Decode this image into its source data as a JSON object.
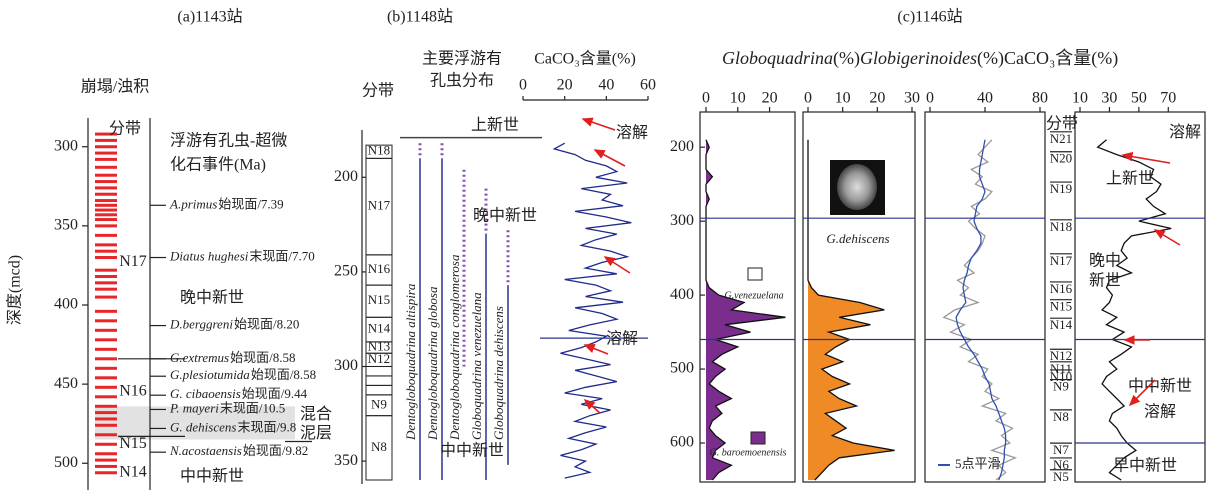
{
  "panel_a": {
    "title": "(a)1143站",
    "column_title": "崩塌/浊积",
    "y_label": "深度(mcd)",
    "ylim": [
      285,
      515
    ],
    "yticks": [
      300,
      350,
      400,
      450,
      500
    ],
    "turbidites": [
      292,
      296,
      300,
      304,
      308,
      313,
      318,
      322,
      326,
      330,
      334,
      337,
      340,
      343,
      346,
      350,
      356,
      362,
      366,
      370,
      378,
      382,
      386,
      390,
      395,
      404,
      410,
      416,
      422,
      428,
      434,
      440,
      446,
      452,
      458,
      464,
      468,
      472,
      476,
      482,
      488,
      494,
      498,
      502,
      506
    ],
    "zone_header": "分带",
    "zones": [
      {
        "label": "N17",
        "depth": 373
      },
      {
        "label": "N16",
        "depth": 455
      },
      {
        "label": "N15",
        "depth": 488
      },
      {
        "label": "N14",
        "depth": 506
      }
    ],
    "zone_boundaries": [
      434,
      483
    ],
    "events_header": [
      "浮游有孔虫-超微",
      "化石事件(Ma)"
    ],
    "events": [
      {
        "species": "A.primus",
        "text": "始现面/7.39",
        "depth": 337
      },
      {
        "species": "Diatus hughesi",
        "text": "末现面/7.70",
        "depth": 370
      },
      {
        "species": "D.berggreni",
        "text": "始现面/8.20",
        "depth": 413
      },
      {
        "species": "G.extremus",
        "text": "始现面/8.58",
        "depth": 434
      },
      {
        "species": "G.plesiotumida",
        "text": "始现面/8.58",
        "depth": 445
      },
      {
        "species": "G. cibaoensis",
        "text": "始现面/9.44",
        "depth": 457
      },
      {
        "species": "P. mayeri",
        "text": "末现面/10.5",
        "depth": 466
      },
      {
        "species": "G. dehiscens",
        "text": "末现面/9.8",
        "depth": 478
      },
      {
        "species": "N.acostaensis",
        "text": "始现面/9.82",
        "depth": 493
      }
    ],
    "mixed_layer": {
      "label": [
        "混合",
        "泥层"
      ],
      "top": 464,
      "bottom": 485
    },
    "epochs": [
      {
        "label": "晚中新世",
        "depth": 396
      },
      {
        "label": "中中新世",
        "depth": 509
      }
    ]
  },
  "panel_b": {
    "title": "(b)1148站",
    "zone_header": "分带",
    "distribution_title": [
      "主要浮游有",
      "孔虫分布"
    ],
    "ylim": [
      175,
      360
    ],
    "yticks": [
      200,
      250,
      300,
      350
    ],
    "zones": [
      {
        "label": "N18",
        "top": 183,
        "bottom": 190
      },
      {
        "label": "N17",
        "top": 190,
        "bottom": 241
      },
      {
        "label": "N16",
        "top": 241,
        "bottom": 257
      },
      {
        "label": "N15",
        "top": 257,
        "bottom": 274
      },
      {
        "label": "N14",
        "top": 274,
        "bottom": 287
      },
      {
        "label": "N13",
        "top": 287,
        "bottom": 293
      },
      {
        "label": "N12",
        "top": 293,
        "bottom": 300
      },
      {
        "label": null,
        "top": 300,
        "bottom": 305
      },
      {
        "label": null,
        "top": 305,
        "bottom": 310
      },
      {
        "label": null,
        "top": 310,
        "bottom": 315
      },
      {
        "label": "N9",
        "top": 315,
        "bottom": 326
      },
      {
        "label": "N8",
        "top": 326,
        "bottom": 360
      }
    ],
    "species": [
      {
        "name": "Dentogloboquadrina altispira",
        "dotted": [
          182,
          190
        ],
        "solid": [
          190,
          360
        ]
      },
      {
        "name": "Dentogloboquadrina globosa",
        "dotted": [
          182,
          190
        ],
        "solid": [
          190,
          360
        ]
      },
      {
        "name": "Dentogloboquadrina conglomerosa",
        "dotted": [
          196,
          300
        ]
      },
      {
        "name": "Globoquadrina venezuelana",
        "dotted": [
          206,
          230
        ],
        "solid": [
          230,
          360
        ]
      },
      {
        "name": "Globoquadrina dehiscens",
        "dotted": [
          228,
          257
        ],
        "solid": [
          257,
          352
        ]
      }
    ],
    "caco3": {
      "label": "CaCO₃含量(%)",
      "xlim": [
        0,
        60
      ],
      "xticks": [
        0,
        20,
        40,
        60
      ],
      "color": "#1f2a8c",
      "depth": [
        182,
        185,
        188,
        191,
        194,
        197,
        200,
        203,
        206,
        209,
        212,
        215,
        218,
        221,
        224,
        227,
        230,
        233,
        236,
        239,
        242,
        245,
        248,
        251,
        254,
        257,
        260,
        263,
        266,
        269,
        272,
        275,
        278,
        281,
        284,
        287,
        290,
        293,
        296,
        299,
        302,
        305,
        308,
        311,
        314,
        317,
        320,
        323,
        326,
        329,
        332,
        335,
        338,
        341,
        344,
        347,
        350,
        353,
        356,
        359
      ],
      "values": [
        20,
        15,
        25,
        30,
        40,
        45,
        35,
        50,
        28,
        42,
        38,
        48,
        25,
        40,
        52,
        30,
        45,
        35,
        28,
        42,
        50,
        38,
        30,
        45,
        20,
        35,
        42,
        30,
        48,
        25,
        38,
        45,
        32,
        22,
        40,
        35,
        28,
        18,
        30,
        42,
        25,
        35,
        45,
        30,
        20,
        38,
        28,
        42,
        32,
        25,
        40,
        30,
        22,
        35,
        28,
        18,
        30,
        25,
        32,
        20
      ]
    },
    "epoch_boundary": 179,
    "dissolution_line": 285,
    "epochs": [
      {
        "label": "上新世",
        "depth": 173
      },
      {
        "label": "晚中新世",
        "depth": 221
      },
      {
        "label": "中中新世",
        "depth": 345
      }
    ],
    "dissolution": [
      {
        "label": "溶解",
        "depth": 177
      },
      {
        "label": "溶解",
        "depth": 286
      }
    ]
  },
  "panel_c": {
    "title": "(c)1146站",
    "ylim": [
      170,
      650
    ],
    "yticks": [
      200,
      300,
      400,
      500,
      600
    ],
    "depth": [
      190,
      200,
      210,
      220,
      230,
      240,
      250,
      260,
      270,
      280,
      290,
      300,
      310,
      320,
      330,
      340,
      350,
      360,
      370,
      380,
      390,
      400,
      410,
      420,
      430,
      440,
      450,
      460,
      470,
      480,
      490,
      500,
      510,
      520,
      530,
      540,
      550,
      560,
      570,
      580,
      590,
      600,
      610,
      620,
      630,
      640,
      650
    ],
    "globoquadrina": {
      "label": {
        "italic": "Globoquadrina",
        "plain": "(%)"
      },
      "xlim": [
        0,
        28
      ],
      "xticks": [
        0,
        10,
        20
      ],
      "color": "#7b2d8e",
      "values": [
        0,
        1,
        0,
        0,
        0,
        2,
        0,
        0,
        1,
        0,
        0,
        0,
        0,
        0,
        0,
        0,
        0,
        0,
        0,
        0,
        1,
        4,
        12,
        8,
        25,
        6,
        14,
        3,
        10,
        5,
        2,
        6,
        3,
        1,
        4,
        8,
        3,
        5,
        2,
        1,
        3,
        6,
        3,
        2,
        8,
        4,
        2
      ]
    },
    "globigerinoides": {
      "label": {
        "italic": "Globigerinoides",
        "plain": "(%)"
      },
      "xlim": [
        0,
        30
      ],
      "xticks": [
        0,
        10,
        20,
        30
      ],
      "color": "#f08a24",
      "values": [
        0,
        0,
        0,
        0,
        0,
        0,
        0,
        0,
        0,
        0,
        0,
        0,
        0,
        0,
        0,
        0,
        0,
        0,
        0,
        0,
        1,
        3,
        15,
        22,
        9,
        18,
        6,
        12,
        8,
        5,
        10,
        4,
        7,
        12,
        6,
        9,
        14,
        5,
        8,
        11,
        7,
        13,
        25,
        9,
        6,
        4,
        2
      ]
    },
    "third": {
      "xlim": [
        0,
        80
      ],
      "xticks": [
        0,
        40,
        80
      ],
      "color": "#999999",
      "smoothed_color": "#3050b0",
      "smoothed_label": "5点平滑",
      "values": [
        45,
        40,
        35,
        42,
        30,
        38,
        33,
        45,
        40,
        30,
        36,
        28,
        33,
        40,
        38,
        35,
        30,
        25,
        32,
        20,
        28,
        22,
        35,
        18,
        10,
        25,
        15,
        30,
        22,
        35,
        28,
        42,
        38,
        45,
        40,
        50,
        38,
        55,
        48,
        60,
        52,
        58,
        45,
        62,
        50,
        55,
        48
      ],
      "smoothed": [
        40,
        39,
        38,
        37,
        36,
        36,
        38,
        40,
        38,
        34,
        33,
        32,
        34,
        37,
        37,
        34,
        30,
        28,
        27,
        25,
        24,
        25,
        26,
        22,
        19,
        20,
        22,
        25,
        28,
        32,
        35,
        38,
        40,
        43,
        44,
        45,
        48,
        50,
        52,
        54,
        55,
        55,
        54,
        54,
        53,
        52,
        50
      ]
    },
    "caco3": {
      "label": "CaCO₃含量(%)",
      "xlim": [
        10,
        80
      ],
      "xticks": [
        10,
        30,
        50,
        70
      ],
      "color": "#111111",
      "values": [
        28,
        22,
        35,
        50,
        60,
        58,
        65,
        62,
        55,
        60,
        68,
        50,
        72,
        45,
        40,
        38,
        42,
        35,
        45,
        30,
        28,
        32,
        30,
        25,
        35,
        28,
        40,
        32,
        45,
        38,
        30,
        35,
        28,
        25,
        30,
        35,
        40,
        32,
        30,
        35,
        38,
        42,
        48,
        40,
        35,
        30,
        38
      ]
    },
    "zone_header": "分带",
    "zones": [
      {
        "label": "N21",
        "depth": 190
      },
      {
        "label": "N20",
        "depth": 217
      },
      {
        "label": "N19",
        "depth": 258
      },
      {
        "label": "N18",
        "depth": 309
      },
      {
        "label": "N17",
        "depth": 355
      },
      {
        "label": "N16",
        "depth": 393
      },
      {
        "label": "N15",
        "depth": 417
      },
      {
        "label": "N14",
        "depth": 442
      },
      {
        "label": "N12",
        "depth": 484
      },
      {
        "label": "N11",
        "depth": 501
      },
      {
        "label": "N10",
        "depth": 512
      },
      {
        "label": "N9",
        "depth": 525
      },
      {
        "label": "N8",
        "depth": 566
      },
      {
        "label": "N7",
        "depth": 611
      },
      {
        "label": "N6",
        "depth": 631
      },
      {
        "label": "N5",
        "depth": 647
      }
    ],
    "blue_lines": [
      296,
      460
    ],
    "caco3_blue_lines": [
      296,
      460,
      600
    ],
    "species_labels": {
      "dehiscens": "G.dehiscens",
      "venezuelana": "G.venezuelana",
      "baroemoenensis": "G. baroemoenensis"
    },
    "epochs": [
      {
        "label": "上新世",
        "depth": 244
      },
      {
        "label": "晚中",
        "depth": 355
      },
      {
        "label": "新世",
        "depth": 382
      },
      {
        "label": "中中新世",
        "depth": 525
      },
      {
        "label": "早中新世",
        "depth": 632
      }
    ],
    "dissolution": [
      {
        "label": "溶解",
        "depth": 181
      },
      {
        "label": "溶解",
        "depth": 559
      }
    ]
  }
}
